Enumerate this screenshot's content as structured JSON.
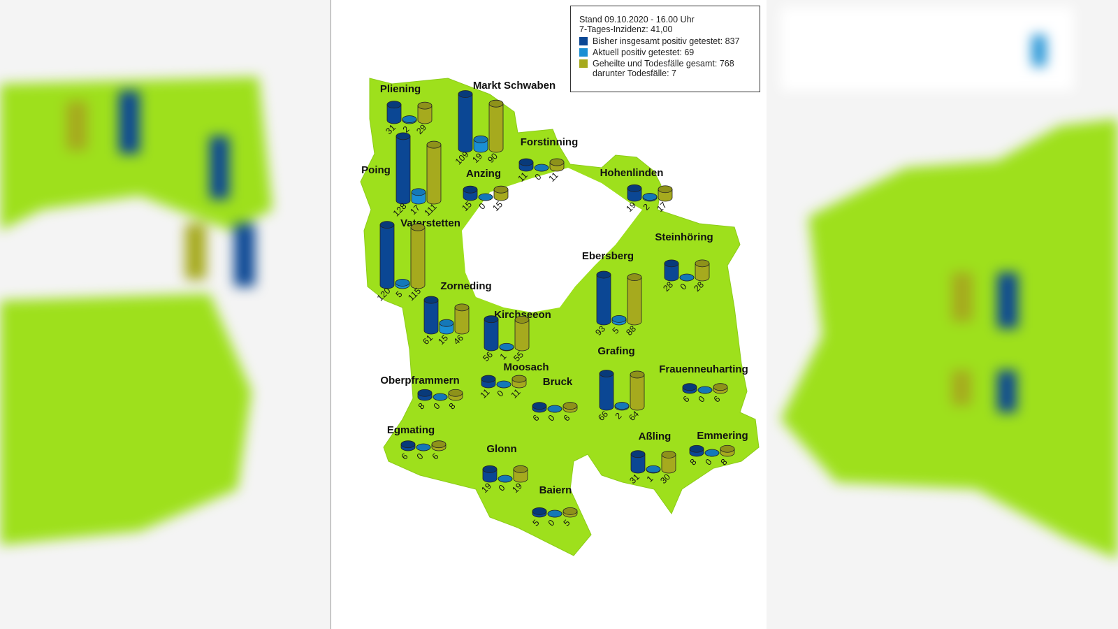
{
  "legend": {
    "stand": "Stand 09.10.2020 - 16.00 Uhr",
    "inzidenz": "7-Tages-Inzidenz: 41,00",
    "items": [
      {
        "label": "Bisher insgesamt positiv getestet: 837",
        "color": "#0b4794"
      },
      {
        "label": "Aktuell positiv getestet: 69",
        "color": "#1a8fd4"
      },
      {
        "label": "Geheilte und Todesfälle gesamt: 768",
        "sub": "darunter Todesfälle: 7",
        "color": "#a6aa1e"
      }
    ]
  },
  "colors": {
    "land": "#9ee01c",
    "border": "#8ccc18"
  },
  "municipalities": [
    {
      "name": "Pliening",
      "total": 31,
      "current": 2,
      "recovered": 29
    },
    {
      "name": "Markt Schwaben",
      "total": 109,
      "current": 19,
      "recovered": 90
    },
    {
      "name": "Forstinning",
      "total": 11,
      "current": 0,
      "recovered": 11
    },
    {
      "name": "Hohenlinden",
      "total": 19,
      "current": 2,
      "recovered": 17
    },
    {
      "name": "Poing",
      "total": 128,
      "current": 17,
      "recovered": 111
    },
    {
      "name": "Anzing",
      "total": 15,
      "current": 0,
      "recovered": 15
    },
    {
      "name": "Vaterstetten",
      "total": 120,
      "current": 5,
      "recovered": 115
    },
    {
      "name": "Steinhöring",
      "total": 28,
      "current": 0,
      "recovered": 28
    },
    {
      "name": "Ebersberg",
      "total": 93,
      "current": 5,
      "recovered": 88
    },
    {
      "name": "Zorneding",
      "total": 61,
      "current": 15,
      "recovered": 46
    },
    {
      "name": "Kirchseeon",
      "total": 56,
      "current": 1,
      "recovered": 55
    },
    {
      "name": "Grafing",
      "total": 66,
      "current": 2,
      "recovered": 64
    },
    {
      "name": "Moosach",
      "total": 11,
      "current": 0,
      "recovered": 11
    },
    {
      "name": "Frauenneuharting",
      "total": 6,
      "current": 0,
      "recovered": 6
    },
    {
      "name": "Oberpframmern",
      "total": 8,
      "current": 0,
      "recovered": 8
    },
    {
      "name": "Bruck",
      "total": 6,
      "current": 0,
      "recovered": 6
    },
    {
      "name": "Egmating",
      "total": 6,
      "current": 0,
      "recovered": 6
    },
    {
      "name": "Aßling",
      "total": 31,
      "current": 1,
      "recovered": 30
    },
    {
      "name": "Emmering",
      "total": 8,
      "current": 0,
      "recovered": 8
    },
    {
      "name": "Glonn",
      "total": 19,
      "current": 0,
      "recovered": 19
    },
    {
      "name": "Baiern",
      "total": 5,
      "current": 0,
      "recovered": 5
    }
  ]
}
